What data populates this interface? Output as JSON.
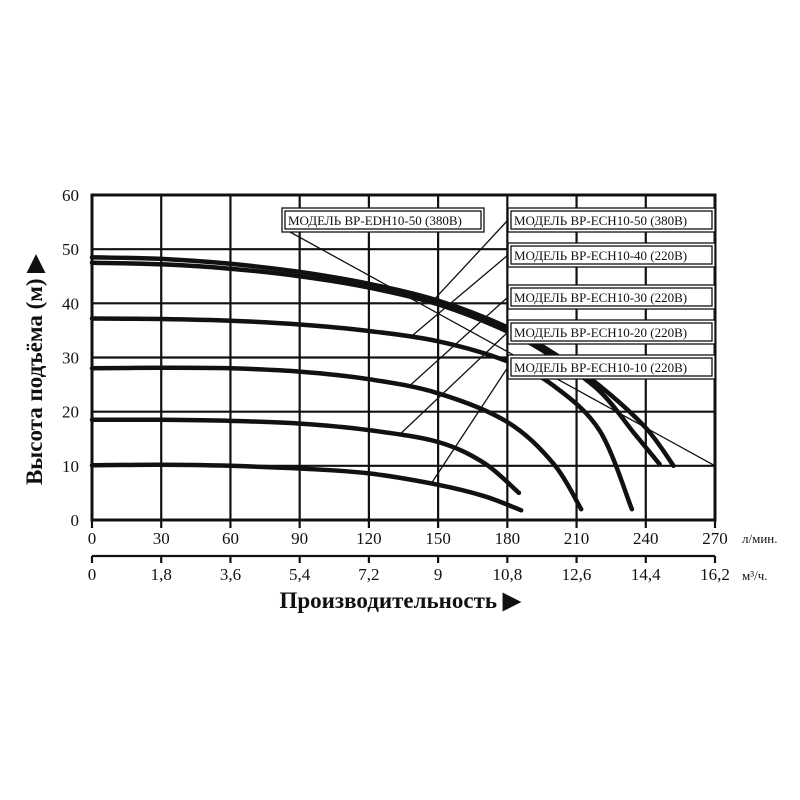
{
  "chart_data": {
    "type": "line",
    "ylabel": "Высота подъёма (м) ▶",
    "xlabel": "Производительность ▶",
    "x_unit_primary": "л/мин.",
    "x_unit_secondary": "м³/ч.",
    "xlim": [
      0,
      270
    ],
    "ylim": [
      0,
      60
    ],
    "x_ticks": [
      "0",
      "30",
      "60",
      "90",
      "120",
      "150",
      "180",
      "210",
      "240",
      "270"
    ],
    "x_ticks_secondary": [
      "0",
      "1,8",
      "3,6",
      "5,4",
      "7,2",
      "9",
      "10,8",
      "12,6",
      "14,4",
      "16,2"
    ],
    "y_ticks": [
      "0",
      "10",
      "20",
      "30",
      "40",
      "50",
      "60"
    ],
    "grid": true,
    "series": [
      {
        "name": "МОДЕЛЬ BP-EDH10-50 (380В)",
        "x": [
          0,
          30,
          60,
          90,
          120,
          150,
          180,
          200,
          220,
          240,
          252
        ],
        "y": [
          48.5,
          48.2,
          47.3,
          45.8,
          43.6,
          40.5,
          35.6,
          30.8,
          24.8,
          17.0,
          10.0
        ]
      },
      {
        "name": "МОДЕЛЬ BP-ECH10-50 (380В)",
        "x": [
          0,
          30,
          60,
          90,
          120,
          150,
          180,
          200,
          220,
          235,
          246
        ],
        "y": [
          47.5,
          47.2,
          46.4,
          45.0,
          42.9,
          39.8,
          34.8,
          30.0,
          23.8,
          16.0,
          10.3
        ]
      },
      {
        "name": "МОДЕЛЬ BP-ECH10-40 (220В)",
        "x": [
          0,
          30,
          60,
          90,
          120,
          150,
          180,
          200,
          220,
          234
        ],
        "y": [
          37.2,
          37.1,
          36.8,
          36.1,
          34.9,
          33.0,
          29.3,
          24.8,
          16.5,
          2.0
        ]
      },
      {
        "name": "МОДЕЛЬ BP-ECH10-30 (220В)",
        "x": [
          0,
          30,
          60,
          90,
          120,
          150,
          180,
          200,
          212
        ],
        "y": [
          28.0,
          28.1,
          28.0,
          27.4,
          26.0,
          23.4,
          18.1,
          10.4,
          2.0
        ]
      },
      {
        "name": "МОДЕЛЬ BP-ECH10-20 (220В)",
        "x": [
          0,
          30,
          60,
          90,
          120,
          150,
          170,
          185
        ],
        "y": [
          18.5,
          18.5,
          18.3,
          17.8,
          16.6,
          14.4,
          10.5,
          5.0
        ]
      },
      {
        "name": "МОДЕЛЬ BP-ECH10-10 (220В)",
        "x": [
          0,
          30,
          60,
          90,
          120,
          150,
          170,
          186
        ],
        "y": [
          10.1,
          10.2,
          10.0,
          9.5,
          8.6,
          6.5,
          4.4,
          1.8
        ]
      }
    ]
  }
}
